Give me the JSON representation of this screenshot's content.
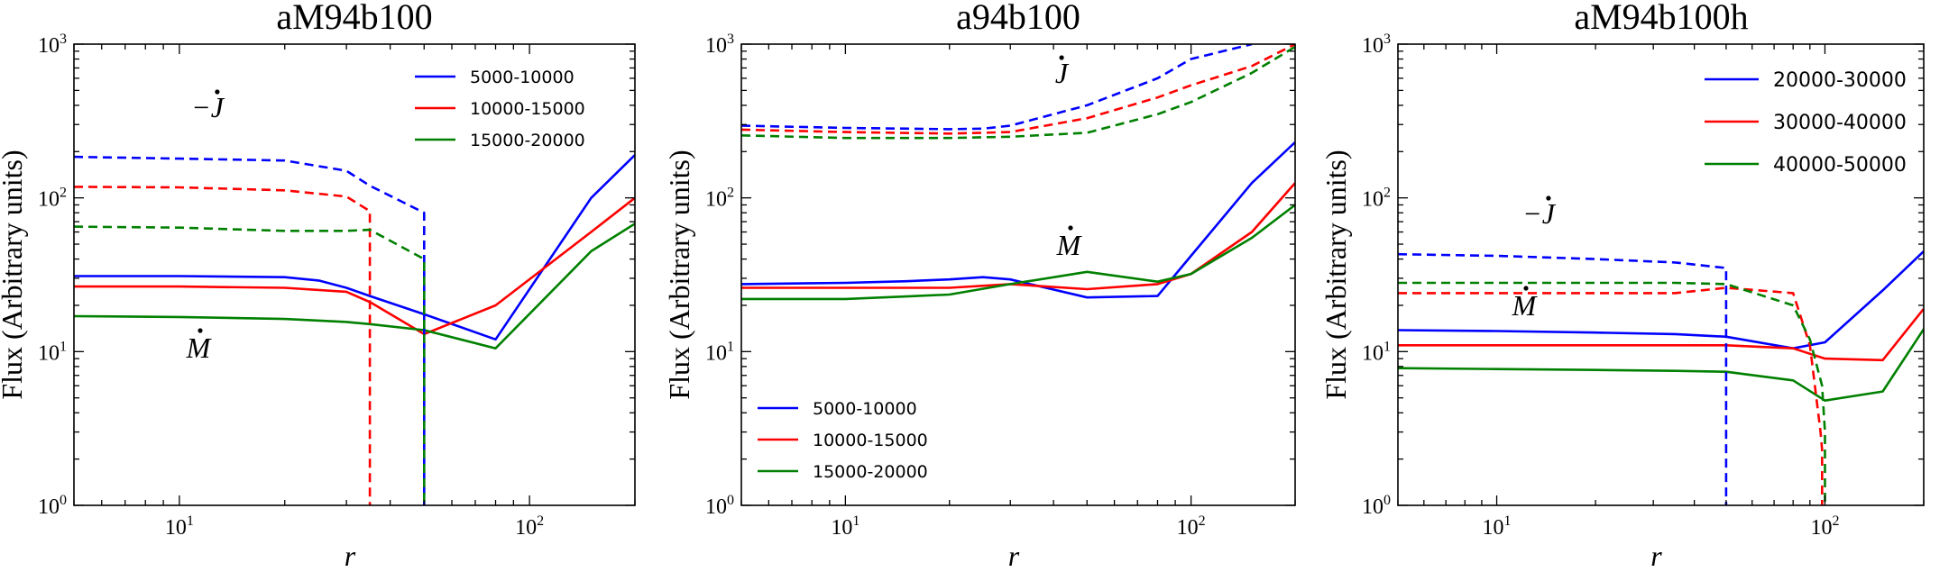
{
  "figure": {
    "panels": [
      {
        "title": "aM94b100",
        "xlabel": "r",
        "ylabel": "Flux (Arbitrary units)",
        "annot_jdot": "−J",
        "annot_mdot": "M"
      },
      {
        "title": "a94b100",
        "xlabel": "r",
        "ylabel": "Flux (Arbitrary units)",
        "annot_jdot": "J",
        "annot_mdot": "M"
      },
      {
        "title": "aM94b100h",
        "xlabel": "r",
        "ylabel": "Flux (Arbitrary units)",
        "annot_jdot": "−J",
        "annot_mdot": "M"
      }
    ]
  },
  "colors": {
    "blue": "#0000ff",
    "red": "#ff0000",
    "green": "#008000",
    "axis": "#000000"
  },
  "chart_data": [
    {
      "type": "line",
      "title": "aM94b100",
      "xlabel": "r",
      "ylabel": "Flux (Arbitrary units)",
      "xscale": "log",
      "yscale": "log",
      "xlim": [
        5,
        200
      ],
      "ylim": [
        1,
        1000
      ],
      "legend_position": "top-right",
      "series": [
        {
          "name": "5000-10000",
          "color": "#0000ff",
          "style": "solid",
          "x": [
            5,
            10,
            20,
            25,
            30,
            35,
            50,
            80,
            150,
            200
          ],
          "y": [
            31,
            31,
            30.5,
            29,
            26,
            23,
            17.5,
            12,
            100,
            190
          ]
        },
        {
          "name": "10000-15000",
          "color": "#ff0000",
          "style": "solid",
          "x": [
            5,
            10,
            20,
            30,
            35,
            50,
            80,
            150,
            200
          ],
          "y": [
            26.5,
            26.5,
            26,
            24.5,
            21,
            13,
            20,
            60,
            100
          ]
        },
        {
          "name": "15000-20000",
          "color": "#008000",
          "style": "solid",
          "x": [
            5,
            10,
            20,
            30,
            35,
            50,
            80,
            150,
            200
          ],
          "y": [
            17,
            16.8,
            16.3,
            15.6,
            15.1,
            13.8,
            10.5,
            45,
            68
          ]
        },
        {
          "color": "#0000ff",
          "style": "dashed",
          "x": [
            5,
            10,
            20,
            30,
            35,
            50,
            50
          ],
          "y": [
            185,
            180,
            175,
            150,
            120,
            80,
            1
          ]
        },
        {
          "color": "#ff0000",
          "style": "dashed",
          "x": [
            5,
            10,
            20,
            30,
            35,
            35
          ],
          "y": [
            118,
            117,
            112,
            102,
            82,
            1
          ]
        },
        {
          "color": "#008000",
          "style": "dashed",
          "x": [
            5,
            10,
            20,
            30,
            35,
            50,
            50
          ],
          "y": [
            65,
            64,
            61,
            61,
            62,
            40,
            1
          ]
        }
      ]
    },
    {
      "type": "line",
      "title": "a94b100",
      "xlabel": "r",
      "ylabel": "Flux (Arbitrary units)",
      "xscale": "log",
      "yscale": "log",
      "xlim": [
        5,
        200
      ],
      "ylim": [
        1,
        1000
      ],
      "legend_position": "lower-left",
      "series": [
        {
          "name": "5000-10000",
          "color": "#0000ff",
          "style": "solid",
          "x": [
            5,
            10,
            15,
            20,
            25,
            30,
            50,
            80,
            100,
            150,
            200
          ],
          "y": [
            27.5,
            28,
            28.7,
            29.5,
            30.5,
            29.5,
            22.5,
            23,
            42,
            125,
            230
          ]
        },
        {
          "name": "10000-15000",
          "color": "#ff0000",
          "style": "solid",
          "x": [
            5,
            10,
            20,
            30,
            50,
            80,
            100,
            150,
            200
          ],
          "y": [
            26,
            26,
            26,
            27.5,
            25.5,
            27.5,
            32,
            60,
            125
          ]
        },
        {
          "name": "15000-20000",
          "color": "#008000",
          "style": "solid",
          "x": [
            5,
            10,
            20,
            30,
            50,
            80,
            100,
            150,
            200
          ],
          "y": [
            22,
            22,
            23.5,
            27.5,
            33,
            28.5,
            32,
            55,
            90
          ]
        },
        {
          "color": "#0000ff",
          "style": "dashed",
          "x": [
            5,
            10,
            20,
            25,
            30,
            50,
            80,
            100,
            150
          ],
          "y": [
            295,
            285,
            280,
            282,
            295,
            400,
            600,
            800,
            1000
          ]
        },
        {
          "color": "#ff0000",
          "style": "dashed",
          "x": [
            5,
            10,
            20,
            30,
            50,
            80,
            100,
            150,
            200
          ],
          "y": [
            278,
            268,
            262,
            268,
            330,
            450,
            540,
            720,
            1000
          ]
        },
        {
          "color": "#008000",
          "style": "dashed",
          "x": [
            5,
            10,
            20,
            30,
            50,
            80,
            100,
            150,
            200
          ],
          "y": [
            255,
            245,
            245,
            250,
            265,
            350,
            420,
            650,
            960
          ]
        }
      ]
    },
    {
      "type": "line",
      "title": "aM94b100h",
      "xlabel": "r",
      "ylabel": "Flux (Arbitrary units)",
      "xscale": "log",
      "yscale": "log",
      "xlim": [
        5,
        200
      ],
      "ylim": [
        1,
        1000
      ],
      "legend_position": "top-right",
      "series": [
        {
          "name": "20000-30000",
          "color": "#0000ff",
          "style": "solid",
          "x": [
            5,
            10,
            20,
            35,
            50,
            80,
            100,
            150,
            200
          ],
          "y": [
            13.8,
            13.6,
            13.3,
            13,
            12.5,
            10.5,
            11.5,
            25,
            45
          ]
        },
        {
          "name": "30000-40000",
          "color": "#ff0000",
          "style": "solid",
          "x": [
            5,
            10,
            20,
            35,
            50,
            80,
            100,
            150,
            200
          ],
          "y": [
            11,
            11,
            11,
            11,
            11,
            10.5,
            9,
            8.8,
            19
          ]
        },
        {
          "name": "40000-50000",
          "color": "#008000",
          "style": "solid",
          "x": [
            5,
            10,
            20,
            35,
            50,
            80,
            100,
            150,
            200
          ],
          "y": [
            7.8,
            7.7,
            7.6,
            7.5,
            7.4,
            6.5,
            4.8,
            5.5,
            14
          ]
        },
        {
          "color": "#0000ff",
          "style": "dashed",
          "x": [
            5,
            10,
            20,
            35,
            50,
            50
          ],
          "y": [
            43,
            42,
            40,
            38,
            35,
            1
          ]
        },
        {
          "color": "#ff0000",
          "style": "dashed",
          "x": [
            5,
            10,
            20,
            35,
            50,
            80,
            90,
            97,
            98,
            98
          ],
          "y": [
            24,
            24,
            24,
            24,
            26,
            24,
            11,
            3,
            2.3,
            1
          ]
        },
        {
          "color": "#008000",
          "style": "dashed",
          "x": [
            5,
            10,
            20,
            35,
            50,
            80,
            90,
            98,
            100,
            100
          ],
          "y": [
            28,
            28,
            28,
            28,
            27.5,
            20,
            12,
            6,
            3,
            1
          ]
        }
      ]
    }
  ]
}
